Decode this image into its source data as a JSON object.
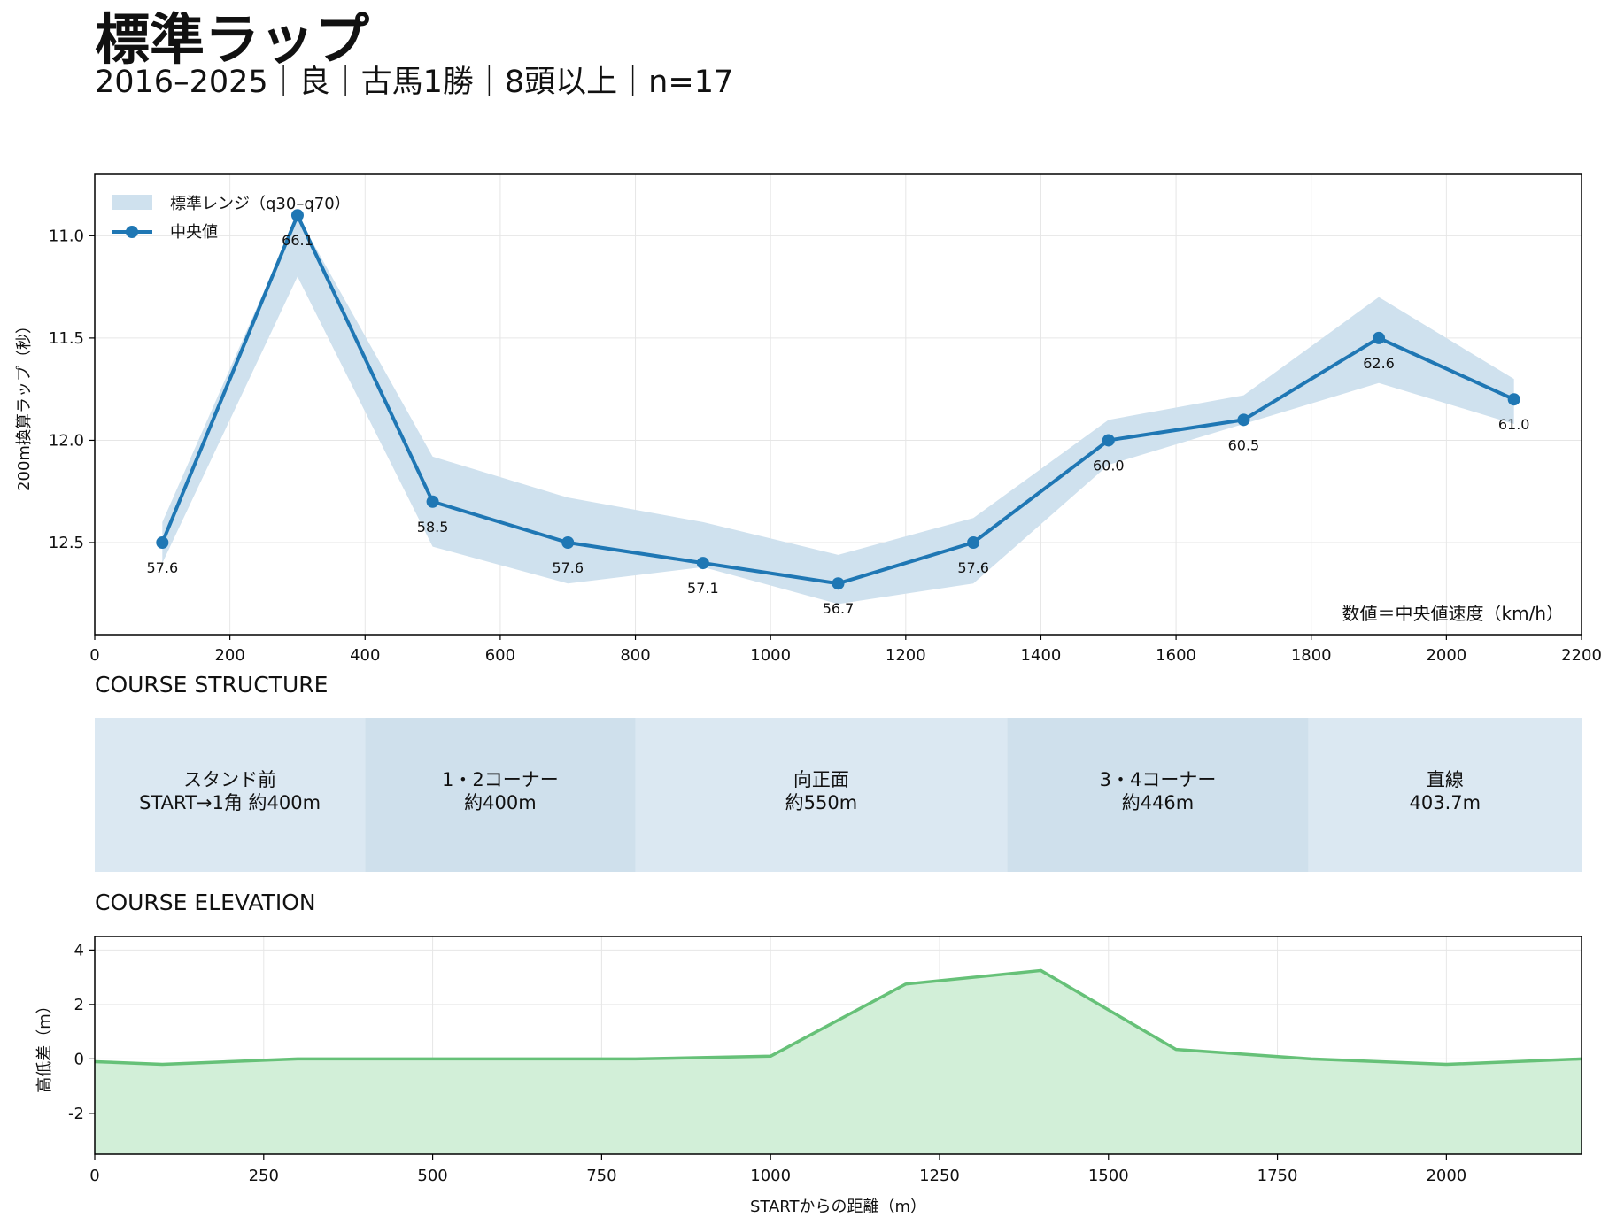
{
  "header": {
    "title": "標準ラップ",
    "subtitle": "2016–2025｜良｜古馬1勝｜8頭以上｜n=17"
  },
  "colors": {
    "line": "#1f77b4",
    "band": "#cfe1ee",
    "grid": "#e6e6e6",
    "segment_light": "#dbe8f2",
    "segment_dark": "#cfe0ec",
    "elevation_line": "#66c178",
    "elevation_fill": "#d2efd8"
  },
  "chart_data": [
    {
      "type": "line",
      "title": "",
      "xlabel": "",
      "ylabel": "200m換算ラップ（秒）",
      "xlim": [
        0,
        2200
      ],
      "ylim": [
        12.95,
        10.7
      ],
      "y_inverted": true,
      "xticks": [
        0,
        200,
        400,
        600,
        800,
        1000,
        1200,
        1400,
        1600,
        1800,
        2000,
        2200
      ],
      "yticks": [
        11.0,
        11.5,
        12.0,
        12.5
      ],
      "ytick_labels": [
        "11.0",
        "11.5",
        "12.0",
        "12.5"
      ],
      "grid": true,
      "legend_position": "top-left",
      "legend": [
        {
          "label": "標準レンジ（q30–q70）",
          "kind": "band"
        },
        {
          "label": "中央値",
          "kind": "line"
        }
      ],
      "note": "数値＝中央値速度（km/h）",
      "x": [
        100,
        300,
        500,
        700,
        900,
        1100,
        1300,
        1500,
        1700,
        1900,
        2100
      ],
      "series": [
        {
          "name": "中央値",
          "values": [
            12.5,
            10.9,
            12.3,
            12.5,
            12.6,
            12.7,
            12.5,
            12.0,
            11.9,
            11.5,
            11.8
          ]
        }
      ],
      "band": {
        "name": "標準レンジ（q30–q70）",
        "lower": [
          12.4,
          10.9,
          12.08,
          12.28,
          12.4,
          12.56,
          12.38,
          11.9,
          11.78,
          11.3,
          11.7
        ],
        "upper": [
          12.6,
          11.2,
          12.52,
          12.7,
          12.62,
          12.8,
          12.7,
          12.12,
          11.92,
          11.72,
          11.92
        ]
      },
      "data_labels": [
        "57.6",
        "66.1",
        "58.5",
        "57.6",
        "57.1",
        "56.7",
        "57.6",
        "60.0",
        "60.5",
        "62.6",
        "61.0"
      ]
    },
    {
      "type": "table",
      "title": "COURSE STRUCTURE",
      "x_range": [
        0,
        2200
      ],
      "segments": [
        {
          "start": 0,
          "end": 400,
          "name": "スタンド前",
          "detail": "START→1角 約400m",
          "shade": "light"
        },
        {
          "start": 400,
          "end": 800,
          "name": "1・2コーナー",
          "detail": "約400m",
          "shade": "dark"
        },
        {
          "start": 800,
          "end": 1350,
          "name": "向正面",
          "detail": "約550m",
          "shade": "light"
        },
        {
          "start": 1350,
          "end": 1796,
          "name": "3・4コーナー",
          "detail": "約446m",
          "shade": "dark"
        },
        {
          "start": 1796,
          "end": 2200,
          "name": "直線",
          "detail": "403.7m",
          "shade": "light"
        }
      ]
    },
    {
      "type": "area",
      "title": "COURSE ELEVATION",
      "xlabel": "STARTからの距離（m）",
      "ylabel": "高低差（m）",
      "xlim": [
        0,
        2200
      ],
      "ylim": [
        -3.5,
        4.5
      ],
      "xticks": [
        0,
        250,
        500,
        750,
        1000,
        1250,
        1500,
        1750,
        2000
      ],
      "yticks": [
        -2,
        0,
        2,
        4
      ],
      "grid": true,
      "x": [
        0,
        100,
        300,
        500,
        800,
        1000,
        1200,
        1400,
        1600,
        1800,
        2000,
        2200
      ],
      "values": [
        -0.1,
        -0.2,
        0.0,
        0.0,
        0.0,
        0.1,
        2.75,
        3.25,
        0.35,
        0.0,
        -0.2,
        0.0
      ]
    }
  ]
}
